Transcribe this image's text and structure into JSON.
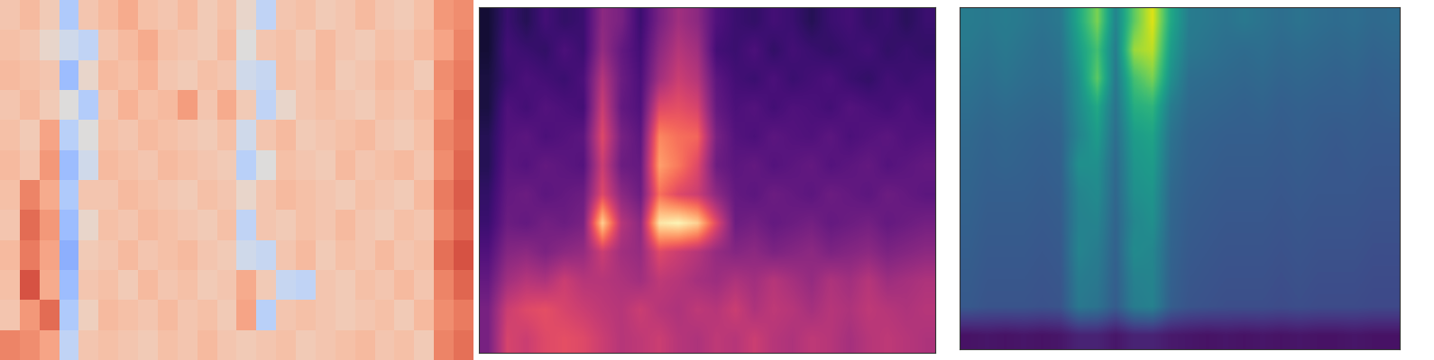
{
  "chart_data": [
    {
      "type": "heatmap",
      "color": "coolwarm",
      "tick_labels": false,
      "cell_range": [
        0,
        1
      ],
      "cells": [
        [
          0.62,
          0.66,
          0.6,
          0.35,
          0.62,
          0.66,
          0.7,
          0.64,
          0.62,
          0.66,
          0.6,
          0.64,
          0.55,
          0.4,
          0.62,
          0.64,
          0.6,
          0.62,
          0.66,
          0.62,
          0.6,
          0.64,
          0.75,
          0.78
        ],
        [
          0.64,
          0.62,
          0.55,
          0.45,
          0.4,
          0.62,
          0.66,
          0.7,
          0.64,
          0.62,
          0.6,
          0.66,
          0.5,
          0.62,
          0.64,
          0.6,
          0.66,
          0.62,
          0.6,
          0.64,
          0.62,
          0.66,
          0.72,
          0.8
        ],
        [
          0.66,
          0.64,
          0.62,
          0.3,
          0.55,
          0.66,
          0.64,
          0.68,
          0.62,
          0.6,
          0.64,
          0.62,
          0.45,
          0.42,
          0.64,
          0.62,
          0.66,
          0.6,
          0.62,
          0.66,
          0.64,
          0.6,
          0.78,
          0.82
        ],
        [
          0.62,
          0.66,
          0.6,
          0.5,
          0.36,
          0.62,
          0.68,
          0.64,
          0.66,
          0.74,
          0.62,
          0.7,
          0.6,
          0.4,
          0.55,
          0.62,
          0.64,
          0.62,
          0.6,
          0.64,
          0.62,
          0.66,
          0.76,
          0.85
        ],
        [
          0.64,
          0.6,
          0.72,
          0.38,
          0.5,
          0.64,
          0.62,
          0.66,
          0.64,
          0.62,
          0.6,
          0.64,
          0.45,
          0.62,
          0.66,
          0.6,
          0.62,
          0.64,
          0.66,
          0.62,
          0.6,
          0.64,
          0.8,
          0.84
        ],
        [
          0.66,
          0.62,
          0.75,
          0.3,
          0.45,
          0.66,
          0.64,
          0.62,
          0.66,
          0.64,
          0.62,
          0.6,
          0.38,
          0.5,
          0.64,
          0.62,
          0.6,
          0.66,
          0.62,
          0.64,
          0.66,
          0.62,
          0.78,
          0.86
        ],
        [
          0.64,
          0.8,
          0.7,
          0.35,
          0.62,
          0.62,
          0.66,
          0.64,
          0.62,
          0.6,
          0.64,
          0.62,
          0.55,
          0.62,
          0.66,
          0.64,
          0.62,
          0.6,
          0.64,
          0.62,
          0.6,
          0.66,
          0.82,
          0.88
        ],
        [
          0.62,
          0.85,
          0.75,
          0.3,
          0.55,
          0.64,
          0.62,
          0.66,
          0.64,
          0.62,
          0.6,
          0.64,
          0.4,
          0.62,
          0.6,
          0.64,
          0.62,
          0.66,
          0.62,
          0.6,
          0.64,
          0.62,
          0.8,
          0.86
        ],
        [
          0.66,
          0.82,
          0.72,
          0.25,
          0.6,
          0.62,
          0.66,
          0.62,
          0.64,
          0.66,
          0.62,
          0.6,
          0.45,
          0.42,
          0.62,
          0.66,
          0.6,
          0.64,
          0.62,
          0.66,
          0.62,
          0.64,
          0.84,
          0.9
        ],
        [
          0.64,
          0.9,
          0.7,
          0.3,
          0.62,
          0.64,
          0.6,
          0.66,
          0.62,
          0.64,
          0.6,
          0.62,
          0.7,
          0.6,
          0.42,
          0.4,
          0.62,
          0.6,
          0.64,
          0.62,
          0.66,
          0.62,
          0.8,
          0.86
        ],
        [
          0.62,
          0.75,
          0.85,
          0.35,
          0.58,
          0.66,
          0.64,
          0.62,
          0.66,
          0.62,
          0.64,
          0.6,
          0.72,
          0.38,
          0.62,
          0.64,
          0.62,
          0.6,
          0.62,
          0.64,
          0.6,
          0.66,
          0.78,
          0.82
        ],
        [
          0.8,
          0.78,
          0.72,
          0.4,
          0.62,
          0.64,
          0.62,
          0.6,
          0.64,
          0.62,
          0.66,
          0.62,
          0.6,
          0.62,
          0.64,
          0.6,
          0.62,
          0.64,
          0.66,
          0.62,
          0.64,
          0.6,
          0.8,
          0.84
        ]
      ]
    },
    {
      "type": "heatmap",
      "color": "magma",
      "tick_labels": false,
      "cell_range": [
        0,
        1
      ],
      "cells": [
        [
          0.1,
          0.2,
          0.15,
          0.22,
          0.18,
          0.2,
          0.4,
          0.35,
          0.2,
          0.35,
          0.45,
          0.4,
          0.25,
          0.2,
          0.18,
          0.22,
          0.2,
          0.15,
          0.2,
          0.22,
          0.18,
          0.2,
          0.16,
          0.2
        ],
        [
          0.1,
          0.22,
          0.2,
          0.18,
          0.24,
          0.2,
          0.42,
          0.3,
          0.22,
          0.4,
          0.5,
          0.45,
          0.22,
          0.2,
          0.24,
          0.18,
          0.22,
          0.2,
          0.18,
          0.2,
          0.22,
          0.18,
          0.2,
          0.18
        ],
        [
          0.12,
          0.2,
          0.24,
          0.22,
          0.2,
          0.24,
          0.5,
          0.32,
          0.24,
          0.45,
          0.55,
          0.5,
          0.28,
          0.22,
          0.2,
          0.24,
          0.2,
          0.22,
          0.24,
          0.2,
          0.18,
          0.22,
          0.2,
          0.22
        ],
        [
          0.12,
          0.25,
          0.22,
          0.26,
          0.24,
          0.22,
          0.55,
          0.3,
          0.25,
          0.6,
          0.62,
          0.58,
          0.3,
          0.24,
          0.26,
          0.22,
          0.25,
          0.24,
          0.22,
          0.26,
          0.24,
          0.22,
          0.25,
          0.22
        ],
        [
          0.15,
          0.26,
          0.28,
          0.24,
          0.26,
          0.28,
          0.6,
          0.35,
          0.28,
          0.75,
          0.7,
          0.68,
          0.35,
          0.26,
          0.24,
          0.28,
          0.26,
          0.25,
          0.28,
          0.24,
          0.26,
          0.28,
          0.25,
          0.26
        ],
        [
          0.15,
          0.28,
          0.26,
          0.3,
          0.28,
          0.26,
          0.55,
          0.32,
          0.3,
          0.8,
          0.72,
          0.6,
          0.32,
          0.28,
          0.3,
          0.26,
          0.28,
          0.3,
          0.26,
          0.28,
          0.3,
          0.26,
          0.28,
          0.3
        ],
        [
          0.18,
          0.3,
          0.32,
          0.28,
          0.3,
          0.32,
          0.6,
          0.4,
          0.32,
          0.7,
          0.6,
          0.55,
          0.4,
          0.3,
          0.28,
          0.32,
          0.3,
          0.28,
          0.32,
          0.3,
          0.28,
          0.32,
          0.3,
          0.28
        ],
        [
          0.2,
          0.32,
          0.3,
          0.34,
          0.32,
          0.35,
          0.9,
          0.5,
          0.4,
          0.95,
          0.98,
          0.9,
          0.6,
          0.32,
          0.34,
          0.3,
          0.32,
          0.34,
          0.3,
          0.32,
          0.34,
          0.3,
          0.32,
          0.34
        ],
        [
          0.25,
          0.38,
          0.4,
          0.36,
          0.4,
          0.42,
          0.55,
          0.45,
          0.42,
          0.6,
          0.55,
          0.5,
          0.42,
          0.38,
          0.4,
          0.36,
          0.38,
          0.4,
          0.36,
          0.38,
          0.4,
          0.36,
          0.38,
          0.4
        ],
        [
          0.3,
          0.45,
          0.5,
          0.48,
          0.55,
          0.5,
          0.5,
          0.48,
          0.45,
          0.52,
          0.5,
          0.46,
          0.44,
          0.48,
          0.45,
          0.5,
          0.46,
          0.42,
          0.48,
          0.45,
          0.5,
          0.44,
          0.46,
          0.48
        ],
        [
          0.35,
          0.55,
          0.6,
          0.62,
          0.58,
          0.55,
          0.52,
          0.5,
          0.55,
          0.5,
          0.48,
          0.52,
          0.5,
          0.55,
          0.48,
          0.52,
          0.5,
          0.46,
          0.5,
          0.48,
          0.52,
          0.5,
          0.48,
          0.5
        ],
        [
          0.35,
          0.58,
          0.55,
          0.6,
          0.62,
          0.6,
          0.55,
          0.5,
          0.52,
          0.55,
          0.5,
          0.48,
          0.52,
          0.5,
          0.55,
          0.5,
          0.48,
          0.52,
          0.5,
          0.46,
          0.5,
          0.52,
          0.5,
          0.48
        ]
      ]
    },
    {
      "type": "heatmap",
      "color": "viridis",
      "tick_labels": false,
      "cell_range": [
        0,
        1
      ],
      "cells": [
        [
          0.42,
          0.4,
          0.42,
          0.4,
          0.38,
          0.4,
          0.6,
          0.8,
          0.45,
          0.75,
          0.95,
          0.6,
          0.42,
          0.4,
          0.38,
          0.4,
          0.38,
          0.36,
          0.38,
          0.36,
          0.35,
          0.36,
          0.34,
          0.35
        ],
        [
          0.4,
          0.38,
          0.4,
          0.38,
          0.36,
          0.38,
          0.55,
          0.7,
          0.42,
          0.85,
          0.9,
          0.55,
          0.4,
          0.38,
          0.36,
          0.35,
          0.36,
          0.34,
          0.35,
          0.34,
          0.33,
          0.34,
          0.32,
          0.33
        ],
        [
          0.38,
          0.36,
          0.38,
          0.36,
          0.35,
          0.36,
          0.5,
          0.75,
          0.4,
          0.7,
          0.8,
          0.5,
          0.36,
          0.35,
          0.34,
          0.33,
          0.34,
          0.32,
          0.33,
          0.32,
          0.31,
          0.32,
          0.3,
          0.31
        ],
        [
          0.36,
          0.34,
          0.35,
          0.34,
          0.33,
          0.34,
          0.48,
          0.6,
          0.38,
          0.62,
          0.65,
          0.42,
          0.34,
          0.33,
          0.32,
          0.31,
          0.32,
          0.3,
          0.31,
          0.3,
          0.3,
          0.3,
          0.29,
          0.3
        ],
        [
          0.34,
          0.32,
          0.33,
          0.32,
          0.31,
          0.32,
          0.45,
          0.55,
          0.36,
          0.55,
          0.58,
          0.38,
          0.32,
          0.31,
          0.3,
          0.3,
          0.3,
          0.29,
          0.3,
          0.29,
          0.28,
          0.29,
          0.28,
          0.28
        ],
        [
          0.33,
          0.31,
          0.32,
          0.31,
          0.3,
          0.31,
          0.5,
          0.5,
          0.34,
          0.52,
          0.55,
          0.36,
          0.31,
          0.3,
          0.29,
          0.29,
          0.29,
          0.28,
          0.29,
          0.28,
          0.27,
          0.28,
          0.27,
          0.27
        ],
        [
          0.32,
          0.3,
          0.3,
          0.3,
          0.29,
          0.3,
          0.45,
          0.48,
          0.33,
          0.5,
          0.52,
          0.34,
          0.3,
          0.29,
          0.28,
          0.28,
          0.28,
          0.27,
          0.28,
          0.27,
          0.27,
          0.27,
          0.26,
          0.26
        ],
        [
          0.31,
          0.29,
          0.29,
          0.29,
          0.28,
          0.29,
          0.44,
          0.45,
          0.32,
          0.46,
          0.5,
          0.33,
          0.29,
          0.28,
          0.27,
          0.27,
          0.27,
          0.26,
          0.27,
          0.26,
          0.26,
          0.26,
          0.25,
          0.25
        ],
        [
          0.3,
          0.28,
          0.28,
          0.28,
          0.27,
          0.28,
          0.45,
          0.42,
          0.31,
          0.48,
          0.46,
          0.32,
          0.28,
          0.27,
          0.26,
          0.26,
          0.26,
          0.25,
          0.26,
          0.25,
          0.25,
          0.25,
          0.24,
          0.24
        ],
        [
          0.29,
          0.27,
          0.27,
          0.27,
          0.26,
          0.27,
          0.42,
          0.4,
          0.3,
          0.44,
          0.45,
          0.31,
          0.27,
          0.26,
          0.25,
          0.25,
          0.25,
          0.24,
          0.25,
          0.24,
          0.24,
          0.24,
          0.23,
          0.23
        ],
        [
          0.28,
          0.26,
          0.26,
          0.26,
          0.25,
          0.26,
          0.4,
          0.38,
          0.29,
          0.42,
          0.44,
          0.3,
          0.26,
          0.25,
          0.24,
          0.24,
          0.24,
          0.23,
          0.24,
          0.23,
          0.23,
          0.23,
          0.22,
          0.22
        ],
        [
          0.05,
          0.06,
          0.05,
          0.06,
          0.05,
          0.06,
          0.1,
          0.1,
          0.06,
          0.1,
          0.1,
          0.07,
          0.06,
          0.05,
          0.06,
          0.05,
          0.06,
          0.05,
          0.06,
          0.05,
          0.05,
          0.06,
          0.05,
          0.05
        ]
      ]
    }
  ]
}
